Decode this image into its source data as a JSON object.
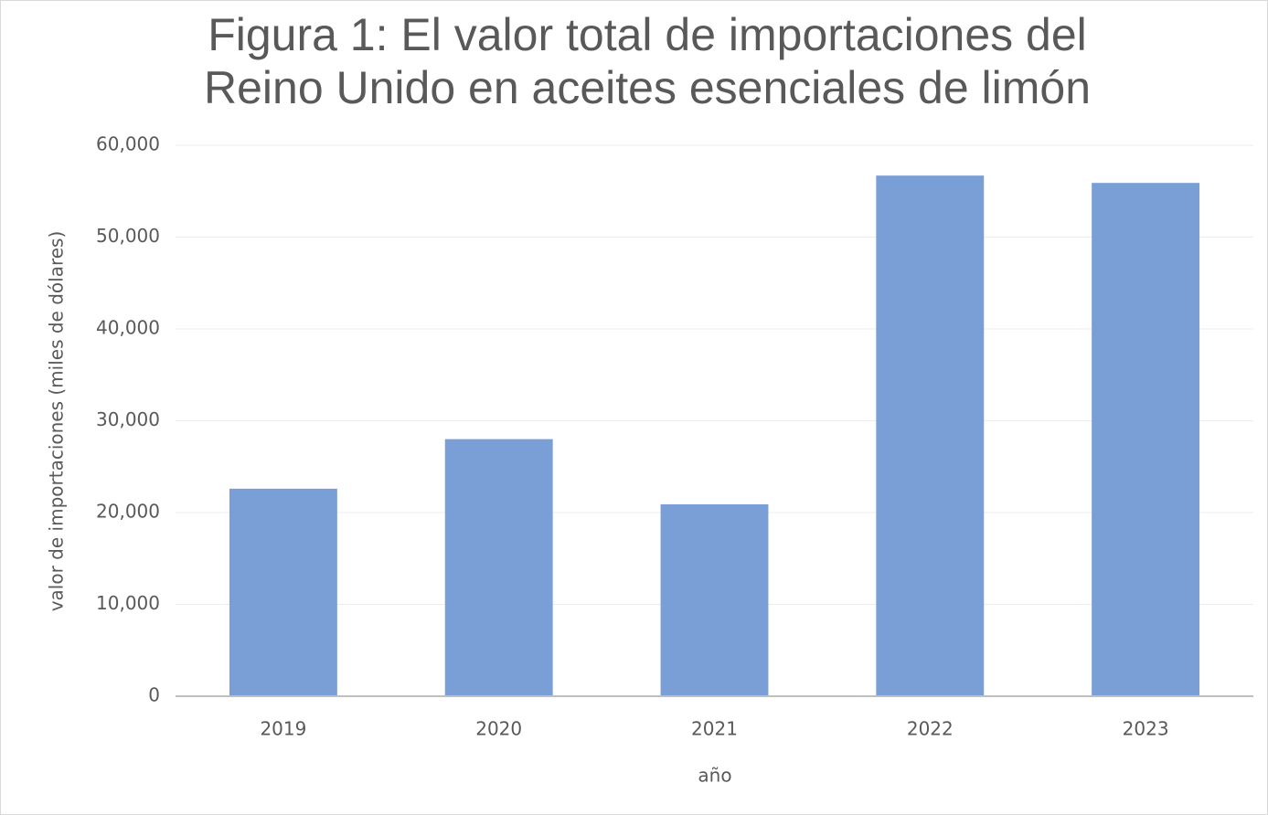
{
  "chart_data": {
    "type": "bar",
    "title": "Figura 1: El valor total de importaciones del Reino Unido en aceites esenciales de limón",
    "x_label": "año",
    "y_label": "valor de importaciones (miles de dólares)",
    "categories": [
      "2019",
      "2020",
      "2021",
      "2022",
      "2023"
    ],
    "values": [
      22600,
      28000,
      20900,
      56700,
      55900
    ],
    "color": "#7a9fd6",
    "ylim": [
      0,
      60000
    ],
    "yticks": [
      0,
      {
        "value": 10000,
        "label": "10,000"
      },
      {
        "value": 20000,
        "label": "20,000"
      },
      {
        "value": 30000,
        "label": "30,000"
      },
      {
        "value": 40000,
        "label": "40,000"
      },
      {
        "value": 50000,
        "label": "50,000"
      },
      {
        "value": 60000,
        "label": "60,000"
      }
    ],
    "grid": true
  }
}
